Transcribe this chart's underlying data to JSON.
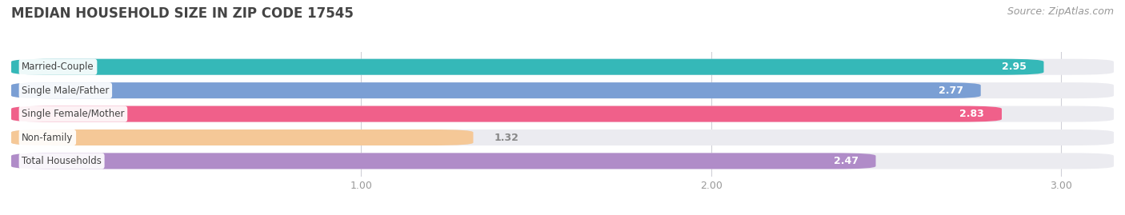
{
  "title": "MEDIAN HOUSEHOLD SIZE IN ZIP CODE 17545",
  "source": "Source: ZipAtlas.com",
  "categories": [
    "Married-Couple",
    "Single Male/Father",
    "Single Female/Mother",
    "Non-family",
    "Total Households"
  ],
  "values": [
    2.95,
    2.77,
    2.83,
    1.32,
    2.47
  ],
  "bar_colors": [
    "#35b8b8",
    "#7b9fd4",
    "#f0608a",
    "#f5c897",
    "#b08cc8"
  ],
  "bar_bg_color": "#ebebf0",
  "xlim": [
    0.0,
    3.15
  ],
  "xticks": [
    1.0,
    2.0,
    3.0
  ],
  "title_fontsize": 12,
  "source_fontsize": 9,
  "bar_label_fontsize": 9,
  "category_fontsize": 8.5,
  "background_color": "#ffffff",
  "bar_height": 0.68,
  "rounding_size": 0.12
}
